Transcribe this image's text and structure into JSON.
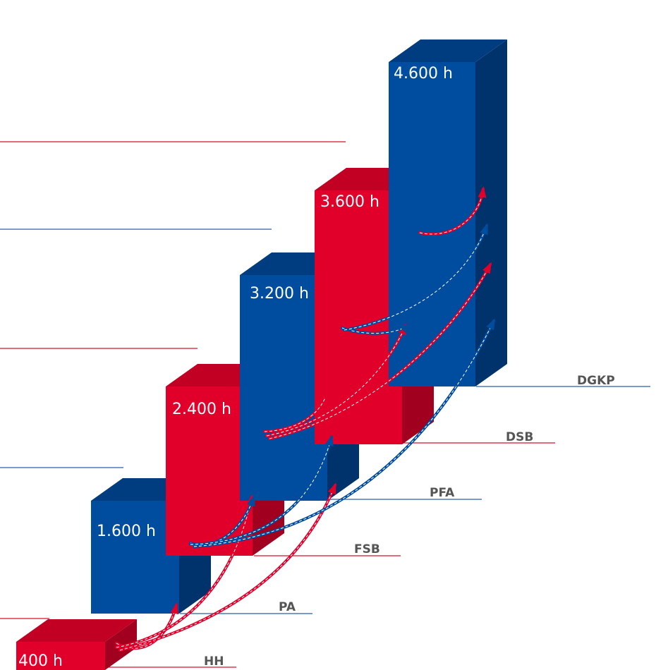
{
  "colors": {
    "red_front": "#e1002a",
    "red_side": "#a1001f",
    "red_top": "#c20024",
    "blue_front": "#004c9e",
    "blue_side": "#00336b",
    "blue_top": "#003d80",
    "red_line": "#d4112f",
    "blue_line": "#2a5ea6"
  },
  "stages": [
    {
      "level": "HH",
      "hours_label": "400 h",
      "hours": 400,
      "color": "red"
    },
    {
      "level": "PA",
      "hours_label": "1.600 h",
      "hours": 1600,
      "color": "blue"
    },
    {
      "level": "FSB",
      "hours_label": "2.400 h",
      "hours": 2400,
      "color": "red"
    },
    {
      "level": "PFA",
      "hours_label": "3.200 h",
      "hours": 3200,
      "color": "blue"
    },
    {
      "level": "DSB",
      "hours_label": "3.600 h",
      "hours": 3600,
      "color": "red"
    },
    {
      "level": "DGKP",
      "hours_label": "4.600 h",
      "hours": 4600,
      "color": "blue"
    }
  ],
  "guide_lines": [
    "red",
    "blue",
    "red",
    "blue",
    "red"
  ]
}
